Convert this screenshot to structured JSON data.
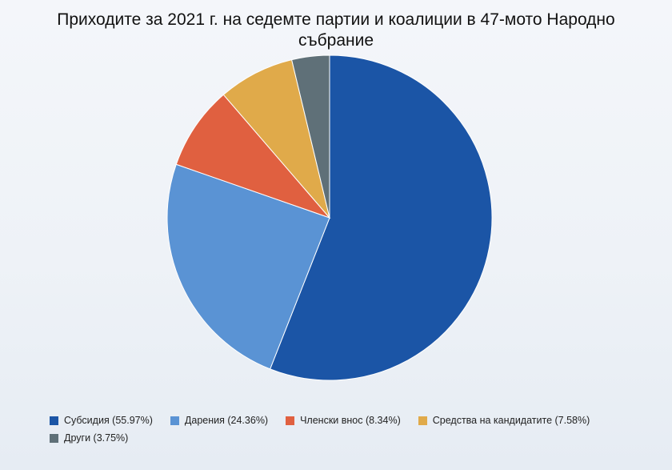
{
  "chart_data": {
    "type": "pie",
    "title_line1": "Приходите за 2021 г. на седемте партии и коалиции в 47-мото Народно",
    "title_line2": "събрание",
    "slices": [
      {
        "label": "Субсидия (55.97%)",
        "value": 55.97,
        "color": "#1b55a6"
      },
      {
        "label": "Дарения (24.36%)",
        "value": 24.36,
        "color": "#5a93d4"
      },
      {
        "label": "Членски внос (8.34%)",
        "value": 8.34,
        "color": "#e06040"
      },
      {
        "label": "Средства на кандидатите (7.58%)",
        "value": 7.58,
        "color": "#e0aa4a"
      },
      {
        "label": "Други (3.75%)",
        "value": 3.75,
        "color": "#5f7078"
      }
    ],
    "legend_position": "bottom-left"
  }
}
